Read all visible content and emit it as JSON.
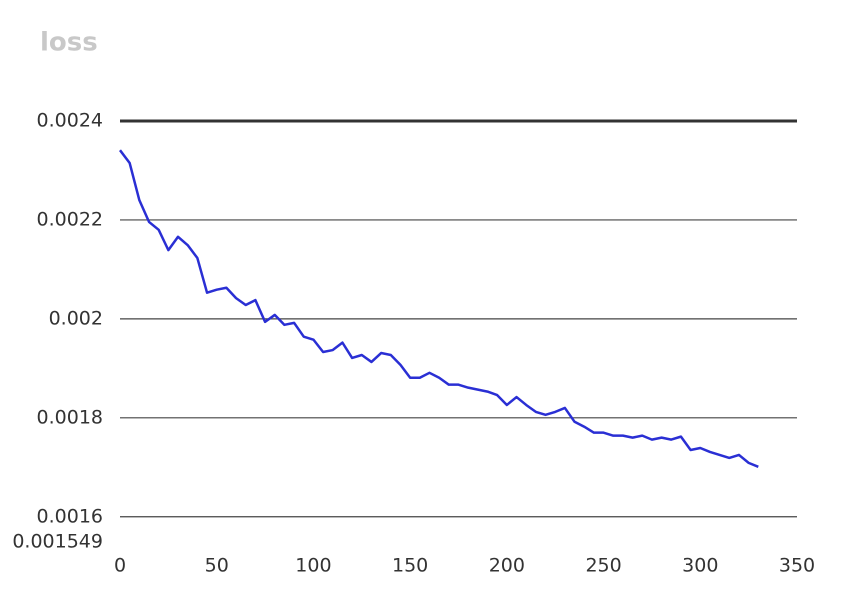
{
  "chart_data": {
    "type": "line",
    "title": "loss",
    "x": [
      0,
      5,
      10,
      15,
      20,
      25,
      30,
      35,
      40,
      45,
      50,
      55,
      60,
      65,
      70,
      75,
      80,
      85,
      90,
      95,
      100,
      105,
      110,
      115,
      120,
      125,
      130,
      135,
      140,
      145,
      150,
      155,
      160,
      165,
      170,
      175,
      180,
      185,
      190,
      195,
      200,
      205,
      210,
      215,
      220,
      225,
      230,
      235,
      240,
      245,
      250,
      255,
      260,
      265,
      270,
      275,
      280,
      285,
      290,
      295,
      300,
      305,
      310,
      315,
      320,
      325,
      330
    ],
    "series": [
      {
        "name": "loss",
        "color": "#2a2fd4",
        "values": [
          0.002341,
          0.002315,
          0.00224,
          0.002196,
          0.00218,
          0.002139,
          0.002166,
          0.002149,
          0.002123,
          0.002053,
          0.002059,
          0.002063,
          0.002042,
          0.002028,
          0.002038,
          0.001994,
          0.002008,
          0.001988,
          0.001992,
          0.001964,
          0.001958,
          0.001933,
          0.001937,
          0.001952,
          0.001921,
          0.001927,
          0.001913,
          0.001931,
          0.001927,
          0.001907,
          0.001881,
          0.001881,
          0.001891,
          0.001881,
          0.001867,
          0.001867,
          0.001861,
          0.001857,
          0.001853,
          0.001846,
          0.001826,
          0.001842,
          0.001826,
          0.001812,
          0.001806,
          0.001812,
          0.00182,
          0.001792,
          0.001782,
          0.00177,
          0.00177,
          0.001764,
          0.001764,
          0.00176,
          0.001764,
          0.001756,
          0.00176,
          0.001756,
          0.001762,
          0.001735,
          0.001739,
          0.001731,
          0.001725,
          0.001719,
          0.001725,
          0.001709,
          0.001701
        ]
      }
    ],
    "xlim": [
      0,
      350
    ],
    "xticks": [
      0,
      50,
      100,
      150,
      200,
      250,
      300,
      350
    ],
    "ylim": [
      0.001549,
      0.0024
    ],
    "yticks": [
      0.001549,
      0.0016,
      0.0018,
      0.002,
      0.0022,
      0.0024
    ],
    "grid": true
  }
}
